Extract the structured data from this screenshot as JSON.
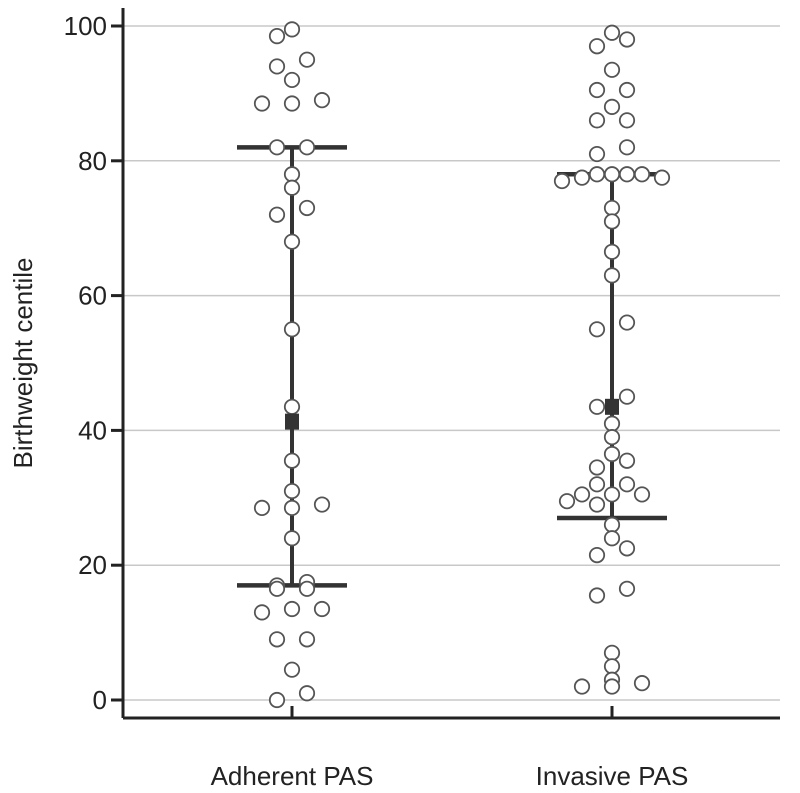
{
  "chart_data": {
    "type": "scatter",
    "title": "",
    "xlabel": "",
    "ylabel": "Birthweight centile",
    "ylim": [
      0,
      100
    ],
    "yticks": [
      0,
      20,
      40,
      60,
      80,
      100
    ],
    "categories": [
      "Adherent PAS",
      "Invasive PAS"
    ],
    "grid": "horizontal",
    "colors": {
      "axis": "#222222",
      "grid": "#c8c8c8",
      "marker_edge": "#555555",
      "summary": "#333333"
    },
    "series": [
      {
        "category": "Adherent PAS",
        "points": [
          [
            0,
            99.5
          ],
          [
            -0.15,
            98.5
          ],
          [
            0.15,
            95
          ],
          [
            -0.15,
            94
          ],
          [
            0,
            92
          ],
          [
            -0.3,
            88.5
          ],
          [
            0,
            88.5
          ],
          [
            0.3,
            89
          ],
          [
            -0.15,
            82
          ],
          [
            0.15,
            82
          ],
          [
            0,
            78
          ],
          [
            0,
            76
          ],
          [
            -0.15,
            72
          ],
          [
            0.15,
            73
          ],
          [
            0,
            68
          ],
          [
            0,
            55
          ],
          [
            0,
            43.5
          ],
          [
            0,
            35.5
          ],
          [
            0,
            31
          ],
          [
            0.3,
            29
          ],
          [
            0,
            28.5
          ],
          [
            -0.3,
            28.5
          ],
          [
            0,
            24
          ],
          [
            -0.15,
            17
          ],
          [
            0.15,
            17.5
          ],
          [
            -0.15,
            16.5
          ],
          [
            0.15,
            16.5
          ],
          [
            -0.3,
            13
          ],
          [
            0,
            13.5
          ],
          [
            0.3,
            13.5
          ],
          [
            -0.15,
            9
          ],
          [
            0.15,
            9
          ],
          [
            0,
            4.5
          ],
          [
            0.15,
            1
          ],
          [
            -0.15,
            0
          ]
        ],
        "mean": 41.3,
        "upper": 82,
        "lower": 17
      },
      {
        "category": "Invasive PAS",
        "points": [
          [
            0,
            99
          ],
          [
            0.15,
            98
          ],
          [
            -0.15,
            97
          ],
          [
            0,
            93.5
          ],
          [
            -0.15,
            90.5
          ],
          [
            0.15,
            90.5
          ],
          [
            0,
            88
          ],
          [
            -0.15,
            86
          ],
          [
            0.15,
            86
          ],
          [
            0.15,
            82
          ],
          [
            -0.15,
            81
          ],
          [
            -0.5,
            77
          ],
          [
            -0.3,
            77.5
          ],
          [
            -0.15,
            78
          ],
          [
            0,
            78
          ],
          [
            0.15,
            78
          ],
          [
            0.3,
            78
          ],
          [
            0.5,
            77.5
          ],
          [
            0,
            73
          ],
          [
            0,
            71
          ],
          [
            0,
            66.5
          ],
          [
            0,
            63
          ],
          [
            0.15,
            56
          ],
          [
            -0.15,
            55
          ],
          [
            0.15,
            45
          ],
          [
            -0.15,
            43.5
          ],
          [
            0,
            41
          ],
          [
            0,
            39
          ],
          [
            0,
            36.5
          ],
          [
            0.15,
            35.5
          ],
          [
            -0.15,
            34.5
          ],
          [
            -0.15,
            32
          ],
          [
            0.15,
            32
          ],
          [
            -0.3,
            30.5
          ],
          [
            0.3,
            30.5
          ],
          [
            -0.45,
            29.5
          ],
          [
            0,
            30.5
          ],
          [
            -0.15,
            29
          ],
          [
            0,
            26
          ],
          [
            0,
            24
          ],
          [
            0.15,
            22.5
          ],
          [
            -0.15,
            21.5
          ],
          [
            0.15,
            16.5
          ],
          [
            -0.15,
            15.5
          ],
          [
            0,
            7
          ],
          [
            0,
            5
          ],
          [
            0,
            3
          ],
          [
            -0.3,
            2
          ],
          [
            0,
            2
          ],
          [
            0.3,
            2.5
          ]
        ],
        "mean": 43.5,
        "upper": 78,
        "lower": 27
      }
    ]
  }
}
